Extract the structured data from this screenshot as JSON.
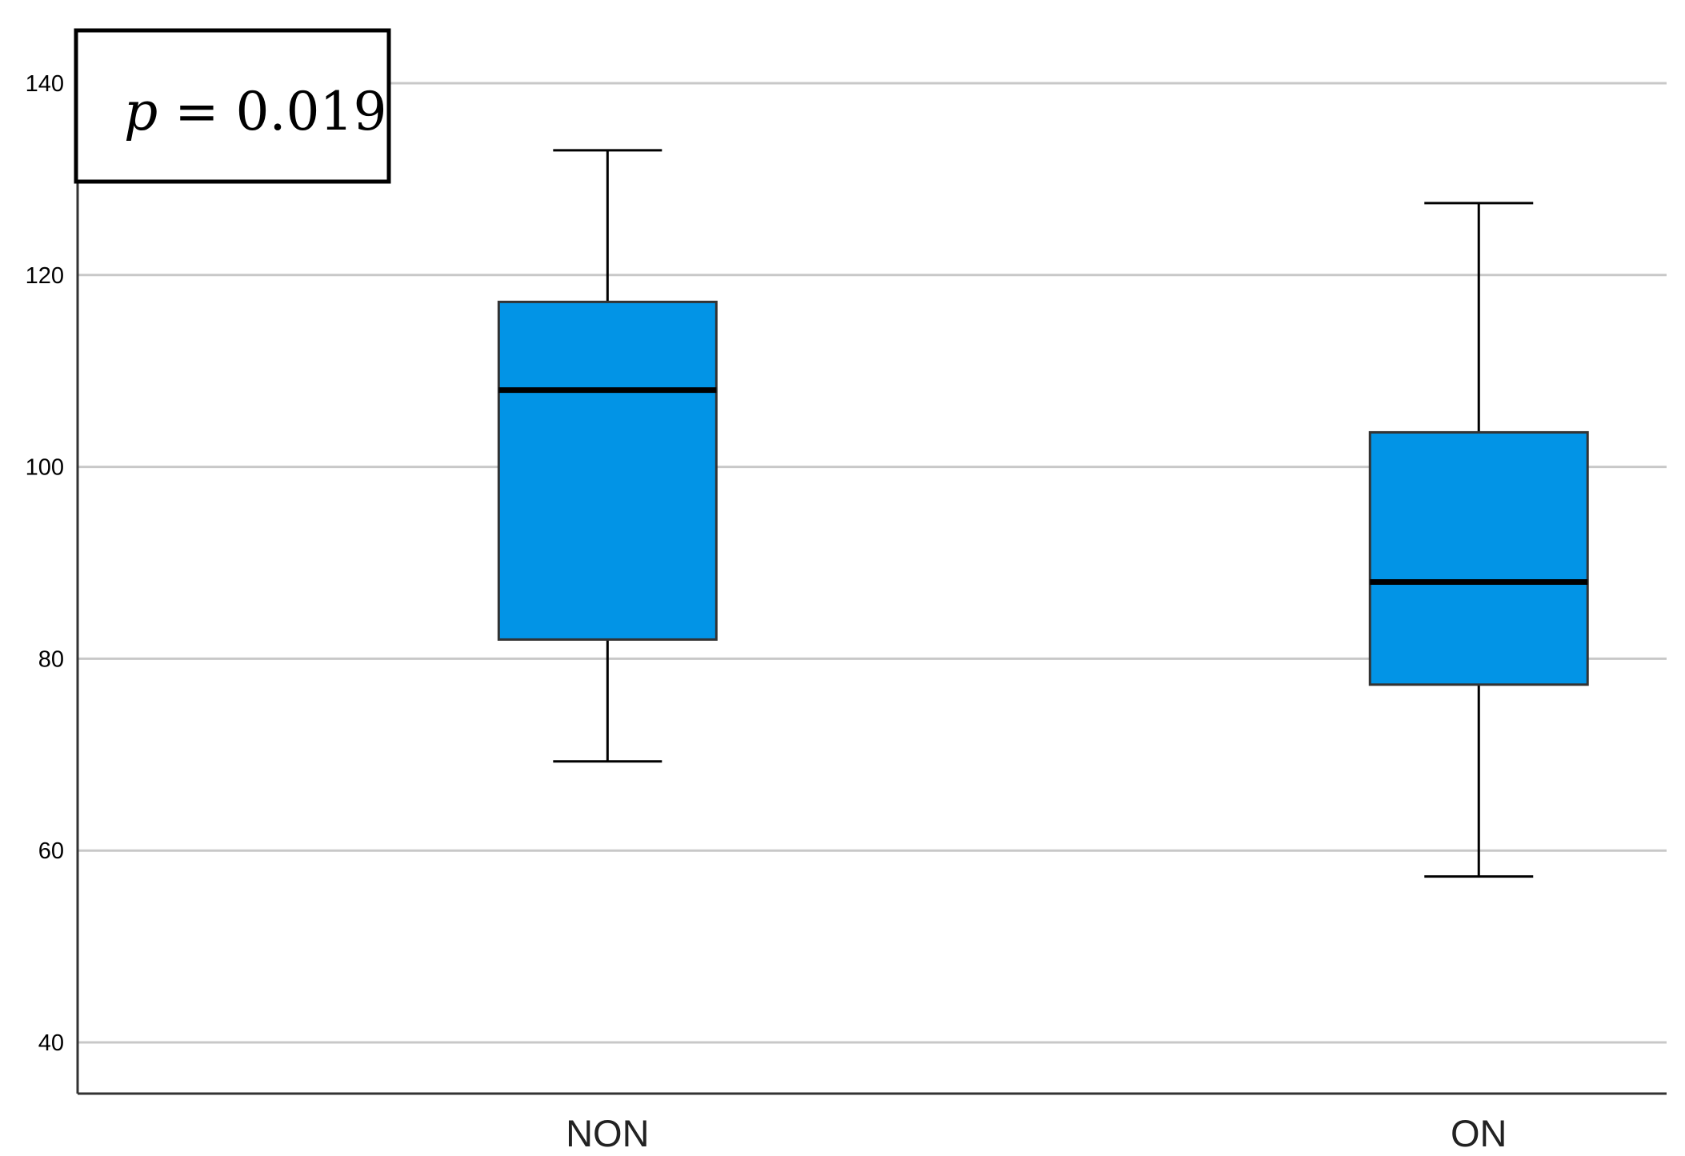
{
  "chart_data": {
    "type": "boxplot",
    "title": "",
    "xlabel": "",
    "ylabel": "",
    "ylim": [
      35,
      145
    ],
    "yticks": [
      40,
      60,
      80,
      100,
      120,
      140
    ],
    "y_tick_labels": [
      "40",
      "60",
      "80",
      "100",
      "120",
      "140"
    ],
    "grid": true,
    "categories": [
      "NON",
      "ON"
    ],
    "boxes": [
      {
        "category": "NON",
        "whisker_low": 69.3,
        "q1": 82.0,
        "median": 108.0,
        "q3": 117.2,
        "whisker_high": 133.0
      },
      {
        "category": "ON",
        "whisker_low": 57.3,
        "q1": 77.3,
        "median": 88.0,
        "q3": 103.6,
        "whisker_high": 127.5
      }
    ],
    "annotation": {
      "symbol": "p",
      "text": " = 0.019",
      "position": "top-left"
    }
  },
  "colors": {
    "box_fill": "#0294e6",
    "grid": "#c8c8c8",
    "axis": "#333333",
    "whisker": "#000000"
  }
}
